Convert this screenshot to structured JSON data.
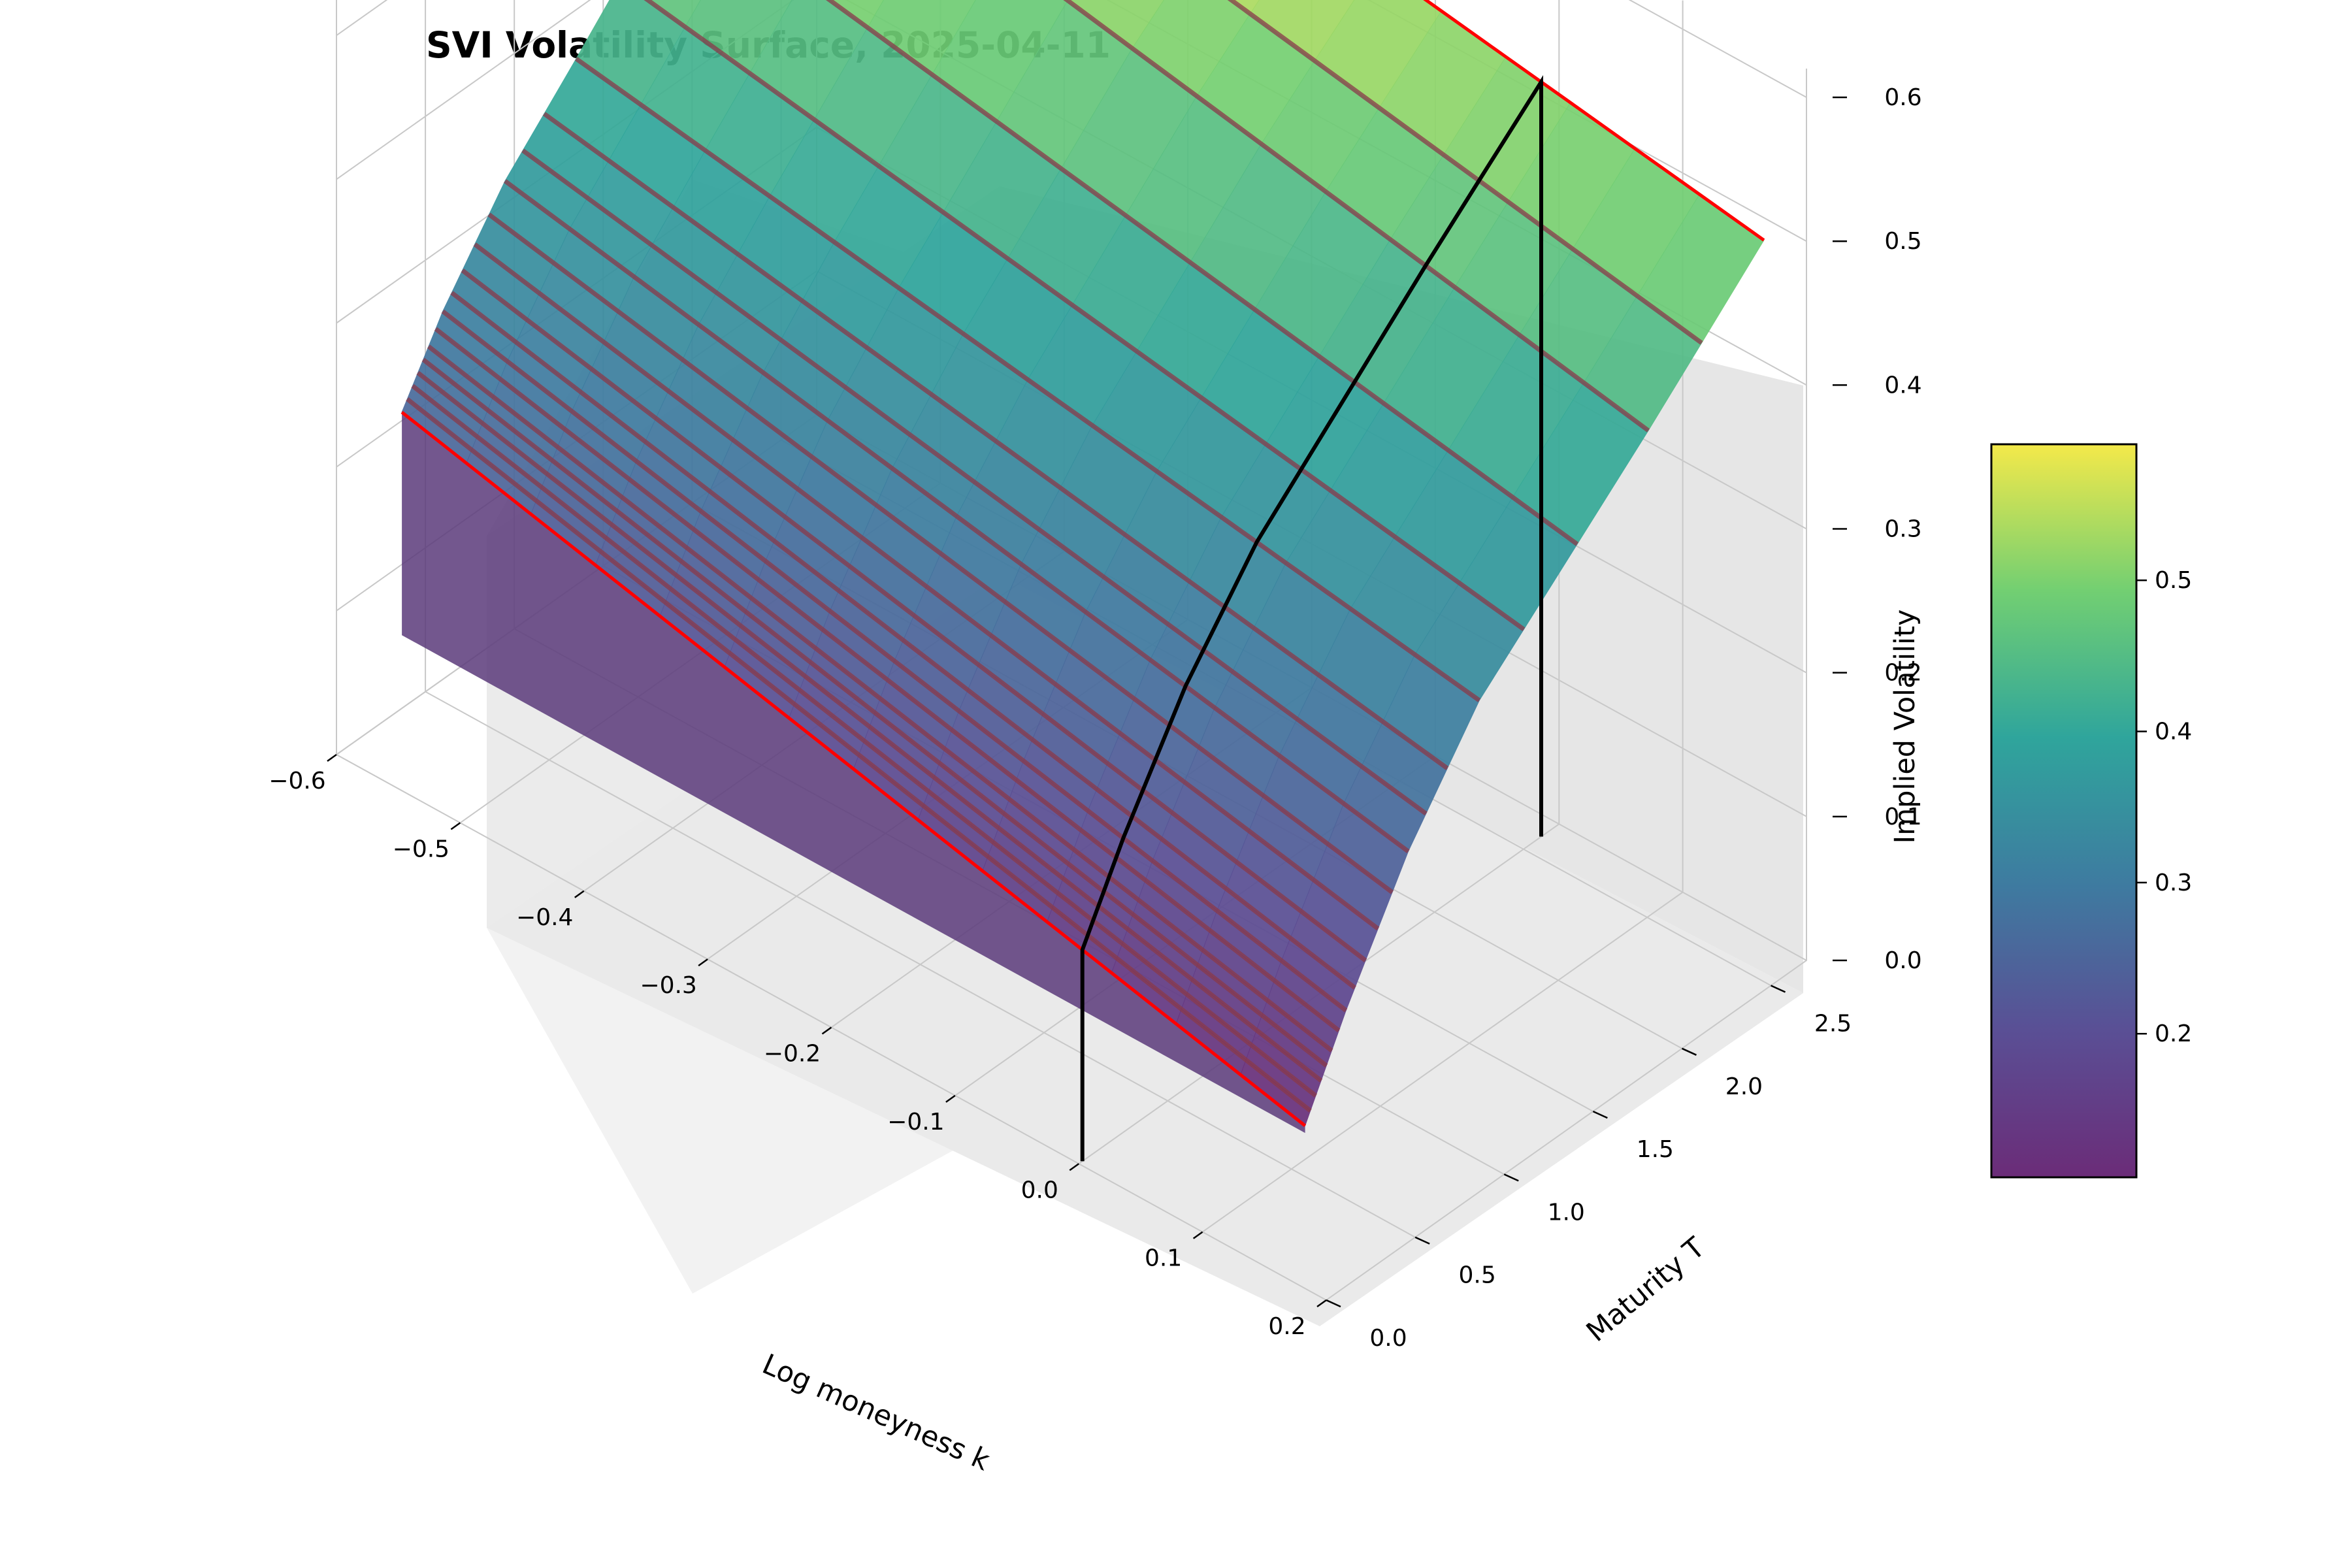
{
  "chart_data": {
    "type": "surface3d",
    "title": "SVI Volatility Surface, 2025-04-11",
    "xlabel": "Log moneyness k",
    "ylabel": "Maturity T",
    "zlabel": "Implied Volatility",
    "xlim": [
      -0.6,
      0.2
    ],
    "ylim": [
      0.0,
      2.7
    ],
    "zlim": [
      0.0,
      0.62
    ],
    "x_ticks": [
      "−0.6",
      "−0.5",
      "−0.4",
      "−0.3",
      "−0.2",
      "−0.1",
      "0.0",
      "0.1",
      "0.2"
    ],
    "y_ticks": [
      "0.0",
      "0.5",
      "1.0",
      "1.5",
      "2.0",
      "2.5"
    ],
    "z_ticks": [
      "0.0",
      "0.1",
      "0.2",
      "0.3",
      "0.4",
      "0.5",
      "0.6"
    ],
    "colorbar": {
      "colormap": "viridis",
      "range": [
        0.105,
        0.59
      ],
      "ticks": [
        "0.2",
        "0.3",
        "0.4",
        "0.5"
      ]
    },
    "k_range": [
      -0.55,
      0.18
    ],
    "maturities": [
      0.02,
      0.05,
      0.08,
      0.11,
      0.14,
      0.17,
      0.21,
      0.25,
      0.3,
      0.36,
      0.43,
      0.51,
      0.6,
      0.7,
      0.82,
      1.0,
      1.25,
      1.55,
      1.95,
      2.25,
      2.6
    ],
    "surface_sample_T": [
      0.02,
      0.25,
      0.6,
      1.0,
      2.0,
      2.6
    ],
    "surface_sample_iv_at_k_min": [
      0.26,
      0.31,
      0.37,
      0.42,
      0.55,
      0.6
    ],
    "surface_sample_iv_at_k_max": [
      0.11,
      0.17,
      0.25,
      0.32,
      0.43,
      0.5
    ],
    "atm_line": {
      "k": 0.0,
      "color": "#000000"
    },
    "slice_line_color": "#ff0000",
    "grid": true
  }
}
